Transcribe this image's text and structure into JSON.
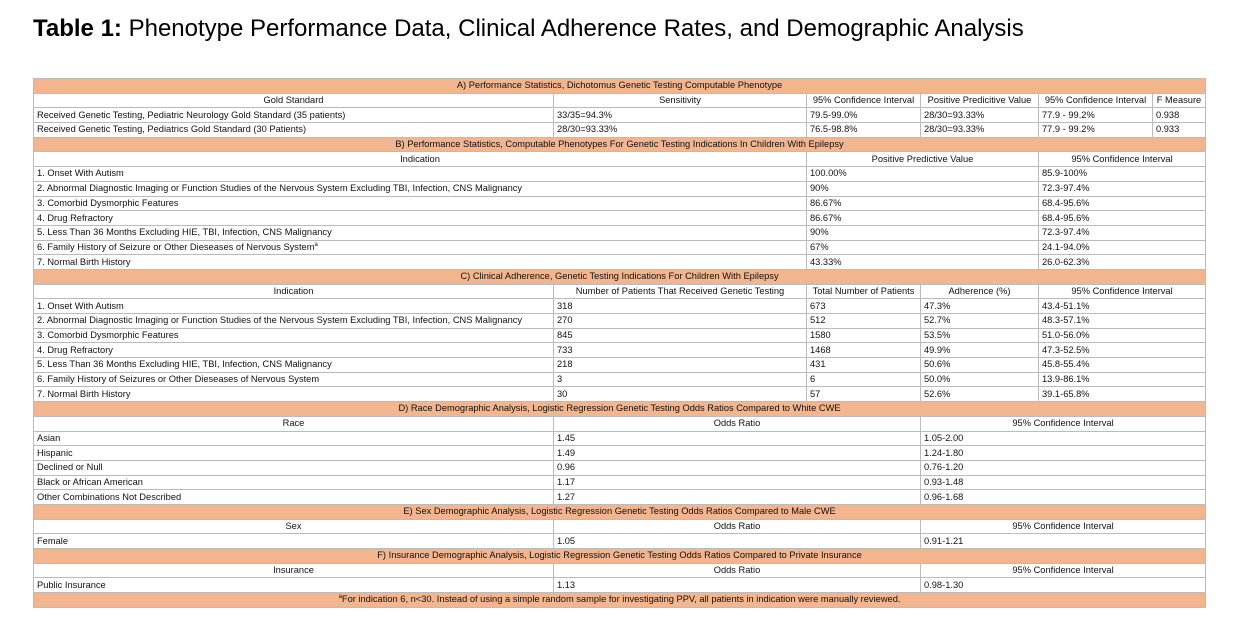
{
  "title": {
    "label": "Table 1:",
    "text": "Phenotype Performance Data, Clinical Adherence Rates, and Demographic Analysis"
  },
  "sections": [
    {
      "title": "A) Performance Statistics, Dichotomus Genetic Testing Computable Phenotype",
      "columns": [
        "Gold Standard",
        "Sensitivity",
        "95% Confidence Interval",
        "Positive Predicitive Value",
        "95% Confidence Interval",
        "F Measure"
      ],
      "rows": [
        [
          "Received Genetic Testing, Pediatric Neurology Gold Standard (35 patients)",
          "33/35=94.3%",
          "79.5-99.0%",
          "28/30=93.33%",
          "77.9 - 99.2%",
          "0.938"
        ],
        [
          "Received Genetic Testing, Pediatrics Gold Standard (30 Patients)",
          "28/30=93.33%",
          "76.5-98.8%",
          "28/30=93.33%",
          "77.9 - 99.2%",
          "0.933"
        ]
      ]
    },
    {
      "title": "B) Performance Statistics, Computable Phenotypes For Genetic Testing Indications In Children With Epilepsy",
      "columns": [
        "Indication",
        "Positive Predictive Value",
        "95% Confidence Interval"
      ],
      "rows": [
        [
          "1. Onset With Autism",
          "100.00%",
          "85.9-100%"
        ],
        [
          "2. Abnormal Diagnostic Imaging or Function Studies of the Nervous System Excluding TBI, Infection, CNS Malignancy",
          "90%",
          "72.3-97.4%"
        ],
        [
          "3. Comorbid Dysmorphic Features",
          "86.67%",
          "68.4-95.6%"
        ],
        [
          "4. Drug Refractory",
          "86.67%",
          "68.4-95.6%"
        ],
        [
          "5. Less Than 36 Months Excluding HIE, TBI, Infection, CNS Malignancy",
          "90%",
          "72.3-97.4%"
        ],
        [
          {
            "text": "6. Family History of Seizure or Other Dieseases of Nervous System",
            "marker": "a"
          },
          "67%",
          "24.1-94.0%"
        ],
        [
          "7. Normal Birth History",
          "43.33%",
          "26.0-62.3%"
        ]
      ]
    },
    {
      "title": "C) Clinical Adherence, Genetic Testing Indications For Children With Epilepsy",
      "columns": [
        "Indication",
        "Number of Patients That Received Genetic Testing",
        "Total Number of Patients",
        "Adherence (%)",
        "95% Confidence Interval"
      ],
      "rows": [
        [
          "1. Onset With Autism",
          "318",
          "673",
          "47.3%",
          "43.4-51.1%"
        ],
        [
          "2. Abnormal Diagnostic Imaging or Function Studies of the Nervous System Excluding TBI, Infection, CNS Malignancy",
          "270",
          "512",
          "52.7%",
          "48.3-57.1%"
        ],
        [
          "3. Comorbid Dysmorphic Features",
          "845",
          "1580",
          "53.5%",
          "51.0-56.0%"
        ],
        [
          "4. Drug Refractory",
          "733",
          "1468",
          "49.9%",
          "47.3-52.5%"
        ],
        [
          "5. Less Than 36 Months Excluding HIE, TBI, Infection, CNS Malignancy",
          "218",
          "431",
          "50.6%",
          "45.8-55.4%"
        ],
        [
          "6. Family History of Seizures or Other Dieseases of Nervous System",
          "3",
          "6",
          "50.0%",
          "13.9-86.1%"
        ],
        [
          "7. Normal Birth History",
          "30",
          "57",
          "52.6%",
          "39.1-65.8%"
        ]
      ]
    },
    {
      "title": "D) Race Demographic Analysis, Logistic Regression Genetic Testing Odds Ratios Compared to White CWE",
      "columns": [
        "Race",
        "Odds Ratio",
        "95% Confidence Interval"
      ],
      "rows": [
        [
          "Asian",
          "1.45",
          "1.05-2.00"
        ],
        [
          "Hispanic",
          "1.49",
          "1.24-1.80"
        ],
        [
          "Declined or Null",
          "0.96",
          "0.76-1.20"
        ],
        [
          "Black or African American",
          "1.17",
          "0.93-1.48"
        ],
        [
          "Other Combinations Not Described",
          "1.27",
          "0.96-1.68"
        ]
      ]
    },
    {
      "title": "E) Sex Demographic Analysis, Logistic Regression Genetic Testing Odds Ratios Compared to Male CWE",
      "columns": [
        "Sex",
        "Odds Ratio",
        "95% Confidence Interval"
      ],
      "rows": [
        [
          "Female",
          "1.05",
          "0.91-1.21"
        ]
      ]
    },
    {
      "title": "F) Insurance Demographic Analysis, Logistic Regression Genetic Testing Odds Ratios Compared to Private Insurance",
      "columns": [
        "Insurance",
        "Odds Ratio",
        "95% Confidence Interval"
      ],
      "rows": [
        [
          "Public Insurance",
          "1.13",
          "0.98-1.30"
        ]
      ]
    }
  ],
  "footnote": {
    "marker": "a",
    "text": "For indication 6, n<30. Instead of using a simple random sample for investigating PPV, all patients in indication were manually reviewed."
  }
}
